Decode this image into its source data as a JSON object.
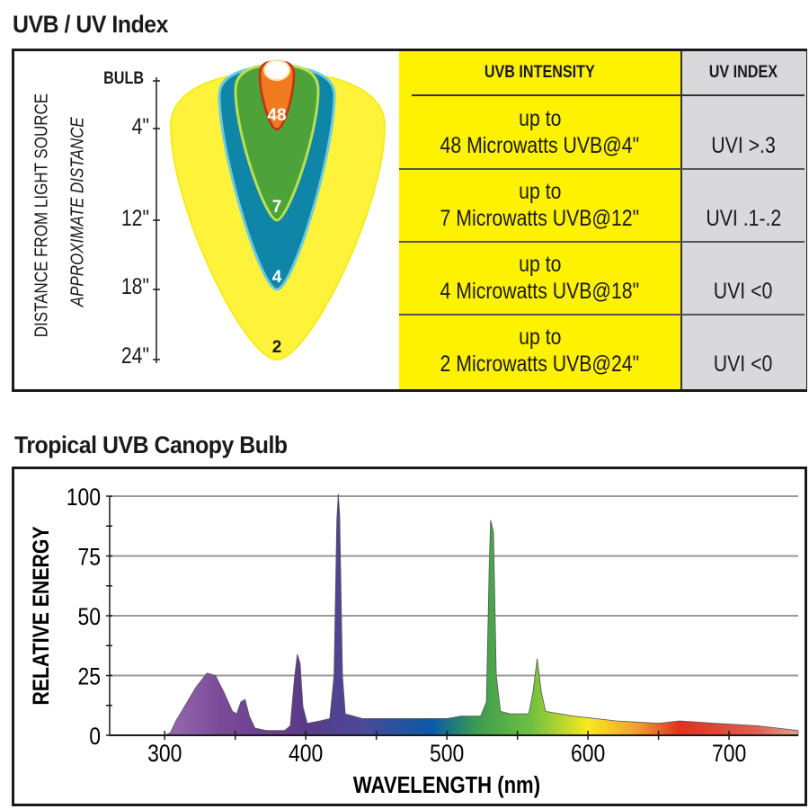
{
  "uv_panel": {
    "title": "UVB / UV Index",
    "axis_label_1": "DISTANCE FROM LIGHT SOURCE",
    "axis_label_2": "APPROXIMATE DISTANCE",
    "distance_ticks": [
      "BULB",
      "4\"",
      "12\"",
      "18\"",
      "24\""
    ],
    "zone_labels": [
      "48",
      "7",
      "4",
      "2"
    ],
    "zone_colors": {
      "bulb": "#ffffff",
      "48": "#f07a20",
      "7": "#4ea23a",
      "4": "#0f86a8",
      "2": "#fff23a"
    },
    "table": {
      "headers": [
        "UVB INTENSITY",
        "UV INDEX"
      ],
      "rows": [
        {
          "line1": "up to",
          "line2": "48 Microwatts UVB@4\"",
          "uvi": "UVI >.3"
        },
        {
          "line1": "up to",
          "line2": "7 Microwatts UVB@12\"",
          "uvi": "UVI .1-.2"
        },
        {
          "line1": "up to",
          "line2": "4 Microwatts UVB@18\"",
          "uvi": "UVI <0"
        },
        {
          "line1": "up to",
          "line2": "2 Microwatts UVB@24\"",
          "uvi": "UVI <0"
        }
      ],
      "colors": {
        "intensity": "#fff200",
        "index": "#d9d9dc"
      }
    }
  },
  "spectrum_panel": {
    "title": "Tropical UVB Canopy Bulb"
  },
  "chart_data": {
    "type": "area",
    "title": "Tropical UVB Canopy Bulb",
    "xlabel": "WAVELENGTH (nm)",
    "ylabel": "RELATIVE ENERGY",
    "xlim": [
      261,
      749
    ],
    "ylim": [
      0,
      100
    ],
    "xticks": [
      300,
      400,
      500,
      600,
      700
    ],
    "yticks": [
      0,
      25,
      50,
      75,
      100
    ],
    "grid": true,
    "fill": "visible-spectrum gradient",
    "points": [
      [
        261,
        0
      ],
      [
        300,
        0
      ],
      [
        304,
        1
      ],
      [
        308,
        6
      ],
      [
        314,
        12
      ],
      [
        322,
        20
      ],
      [
        330,
        26
      ],
      [
        336,
        25
      ],
      [
        342,
        18
      ],
      [
        348,
        10
      ],
      [
        351,
        9
      ],
      [
        354,
        14
      ],
      [
        357,
        15
      ],
      [
        360,
        8
      ],
      [
        364,
        3
      ],
      [
        372,
        2
      ],
      [
        385,
        2
      ],
      [
        389,
        4
      ],
      [
        392,
        24
      ],
      [
        394,
        34
      ],
      [
        396,
        30
      ],
      [
        398,
        12
      ],
      [
        401,
        5
      ],
      [
        410,
        6
      ],
      [
        417,
        7
      ],
      [
        420,
        25
      ],
      [
        422,
        90
      ],
      [
        423,
        101
      ],
      [
        424,
        92
      ],
      [
        426,
        25
      ],
      [
        428,
        9
      ],
      [
        440,
        7
      ],
      [
        470,
        7
      ],
      [
        500,
        7
      ],
      [
        510,
        8
      ],
      [
        524,
        8
      ],
      [
        528,
        14
      ],
      [
        530,
        70
      ],
      [
        531,
        90
      ],
      [
        533,
        85
      ],
      [
        535,
        25
      ],
      [
        538,
        10
      ],
      [
        545,
        9
      ],
      [
        558,
        9
      ],
      [
        561,
        18
      ],
      [
        564,
        32
      ],
      [
        567,
        18
      ],
      [
        570,
        10
      ],
      [
        590,
        8
      ],
      [
        620,
        6
      ],
      [
        650,
        5
      ],
      [
        665,
        6
      ],
      [
        690,
        5
      ],
      [
        720,
        4
      ],
      [
        749,
        2
      ]
    ]
  }
}
